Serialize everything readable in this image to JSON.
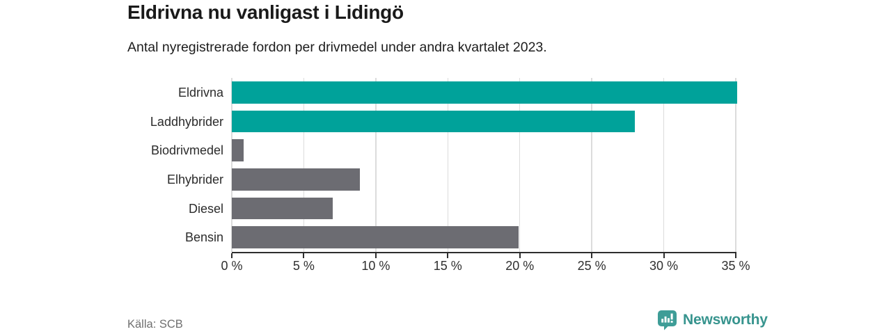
{
  "header": {
    "title": "Eldrivna nu vanligast i Lidingö",
    "subtitle": "Antal nyregistrerade fordon per drivmedel under andra kvartalet 2023."
  },
  "chart_data": {
    "type": "bar",
    "orientation": "horizontal",
    "title": "Eldrivna nu vanligast i Lidingö",
    "subtitle": "Antal nyregistrerade fordon per drivmedel under andra kvartalet 2023.",
    "categories": [
      "Eldrivna",
      "Laddhybrider",
      "Biodrivmedel",
      "Elhybrider",
      "Diesel",
      "Bensin"
    ],
    "values": [
      35.1,
      28.0,
      0.8,
      8.9,
      7.0,
      19.9
    ],
    "bar_colors": [
      "#00a29a",
      "#00a29a",
      "#6c6c72",
      "#6c6c72",
      "#6c6c72",
      "#6c6c72"
    ],
    "highlight_color": "#00a29a",
    "default_color": "#6c6c72",
    "xlim": [
      0,
      35
    ],
    "x_ticks": [
      0,
      5,
      10,
      15,
      20,
      25,
      30,
      35
    ],
    "x_tick_labels": [
      "0 %",
      "5 %",
      "10 %",
      "15 %",
      "20 %",
      "25 %",
      "30 %",
      "35 %"
    ],
    "grid": "vertical",
    "grid_color": "#dcdcdc",
    "axis_color": "#2d2d2d",
    "legend": "none"
  },
  "footer": {
    "source": "Källa: SCB",
    "brand": "Newsworthy",
    "brand_color": "#37948e",
    "logo_icon": "newsworthy-barchart-pin-icon"
  }
}
